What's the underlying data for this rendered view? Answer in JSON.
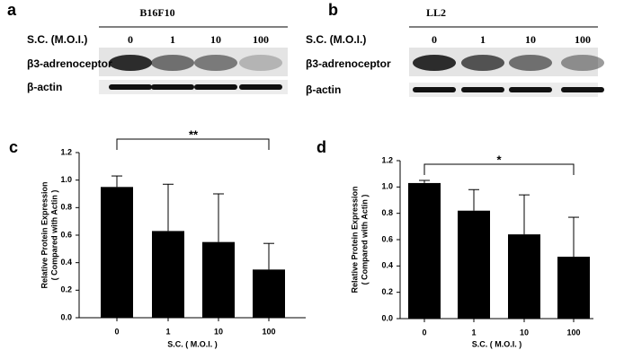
{
  "blots": [
    {
      "panel_label": "a",
      "cell_line": "B16F10",
      "treatment_label": "S.C. (M.O.I.)",
      "lanes": [
        "0",
        "1",
        "10",
        "100"
      ],
      "target_label": "β3-adrenoceptor",
      "control_label": "β-actin"
    },
    {
      "panel_label": "b",
      "cell_line": "LL2",
      "treatment_label": "S.C. (M.O.I.)",
      "lanes": [
        "0",
        "1",
        "10",
        "100"
      ],
      "target_label": "β3-adrenoceptor",
      "control_label": "β-actin"
    }
  ],
  "chart_data": [
    {
      "type": "bar",
      "panel_label": "c",
      "categories": [
        "0",
        "1",
        "10",
        "100"
      ],
      "values": [
        0.95,
        0.63,
        0.55,
        0.35
      ],
      "errors": [
        0.08,
        0.34,
        0.35,
        0.19
      ],
      "color": "#000000",
      "ylim": [
        0,
        1.2
      ],
      "yticks": [
        {
          "value": 0,
          "label": "0.0"
        },
        0.2,
        0.4,
        0.6,
        0.8,
        {
          "value": 1,
          "label": "1.0"
        },
        1.2
      ],
      "xlabel": "S.C. ( M.O.I. )",
      "ylabel": [
        "Relative Protein Expression",
        "( Compared with Actin )"
      ],
      "annotation": "**"
    },
    {
      "type": "bar",
      "panel_label": "d",
      "categories": [
        "0",
        "1",
        "10",
        "100"
      ],
      "values": [
        1.03,
        0.82,
        0.64,
        0.47
      ],
      "errors": [
        0.02,
        0.16,
        0.3,
        0.3
      ],
      "color": "#000000",
      "ylim": [
        0,
        1.2
      ],
      "yticks": [
        {
          "value": 0,
          "label": "0.0"
        },
        0.2,
        0.4,
        0.6,
        0.8,
        {
          "value": 1,
          "label": "1.0"
        },
        1.2
      ],
      "xlabel": "S.C. ( M.O.I. )",
      "ylabel": [
        "Relative Protein Expression",
        "( Compared with Actin )"
      ],
      "annotation": "*"
    }
  ]
}
